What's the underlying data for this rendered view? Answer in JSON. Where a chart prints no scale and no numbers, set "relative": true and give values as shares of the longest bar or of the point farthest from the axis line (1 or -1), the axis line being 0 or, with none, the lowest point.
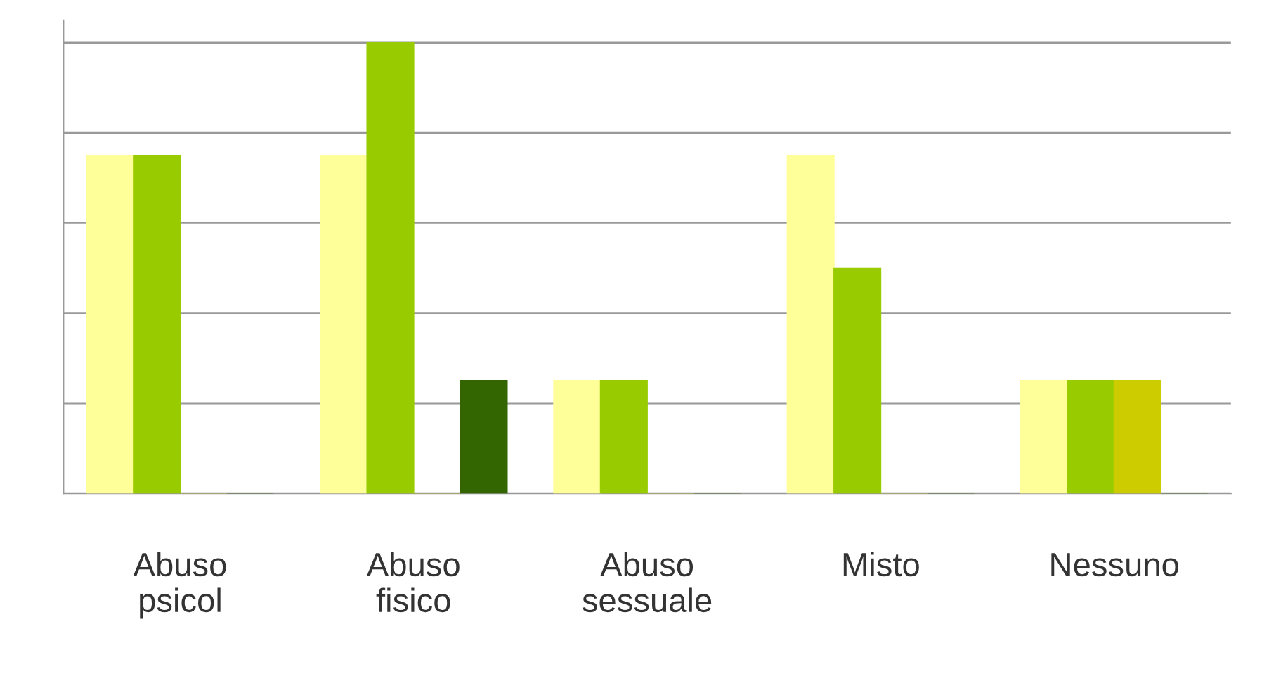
{
  "chart_data": {
    "type": "bar",
    "relative": true,
    "grid": "y",
    "categories": [
      "Abuso psicol",
      "Abuso fisico",
      "Abuso sessuale",
      "Misto",
      "Nessuno"
    ],
    "series": [
      {
        "color": "#ffff99",
        "values": [
          0.75,
          0.75,
          0.25,
          0.75,
          0.25
        ]
      },
      {
        "color": "#99cc00",
        "values": [
          0.75,
          1,
          0.25,
          0.5,
          0.25
        ]
      },
      {
        "color": "#cccc00",
        "values": [
          0,
          0,
          0,
          0,
          0.25
        ]
      },
      {
        "color": "#336600",
        "values": [
          0,
          0.25,
          0,
          0,
          0
        ]
      }
    ]
  }
}
